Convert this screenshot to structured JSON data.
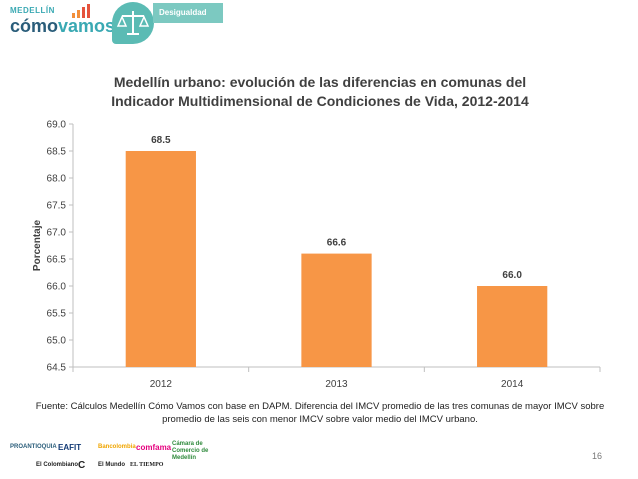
{
  "header": {
    "logo_small": "MEDELLÍN",
    "logo_main_a": "cómo",
    "logo_main_b": "vamos",
    "badge_label": "Desigualdad",
    "badge_icon": "scales-icon"
  },
  "chart_data": {
    "type": "bar",
    "title_line1": "Medellín urbano: evolución de las diferencias en comunas del",
    "title_line2": "Indicador Multidimensional de Condiciones de Vida, 2012-2014",
    "categories": [
      "2012",
      "2013",
      "2014"
    ],
    "values": [
      68.5,
      66.6,
      66.0
    ],
    "value_labels": [
      "68.5",
      "66.6",
      "66.0"
    ],
    "ylabel": "Porcentaje",
    "xlabel": "",
    "ylim": [
      64.5,
      69.0
    ],
    "yticks": [
      "64.5",
      "65.0",
      "65.5",
      "66.0",
      "66.5",
      "67.0",
      "67.5",
      "68.0",
      "68.5",
      "69.0"
    ],
    "bar_color": "#f79646",
    "grid": false,
    "legend": "none"
  },
  "source": {
    "line1": "Fuente: Cálculos Medellín Cómo Vamos con base en DAPM. Diferencia del IMCV promedio de las tres comunas de mayor IMCV sobre",
    "line2": "promedio de las seis con menor IMCV sobre valor medio del IMCV urbano."
  },
  "footer": {
    "sponsors_row1": [
      "PROANTIOQUIA",
      "EAFIT",
      "Bancolombia",
      "comfama",
      "Cámara de Comercio de Medellín"
    ],
    "sponsors_row2": [
      "El Colombiano",
      "C",
      "El Mundo",
      "EL TIEMPO"
    ],
    "page_number": "16"
  }
}
